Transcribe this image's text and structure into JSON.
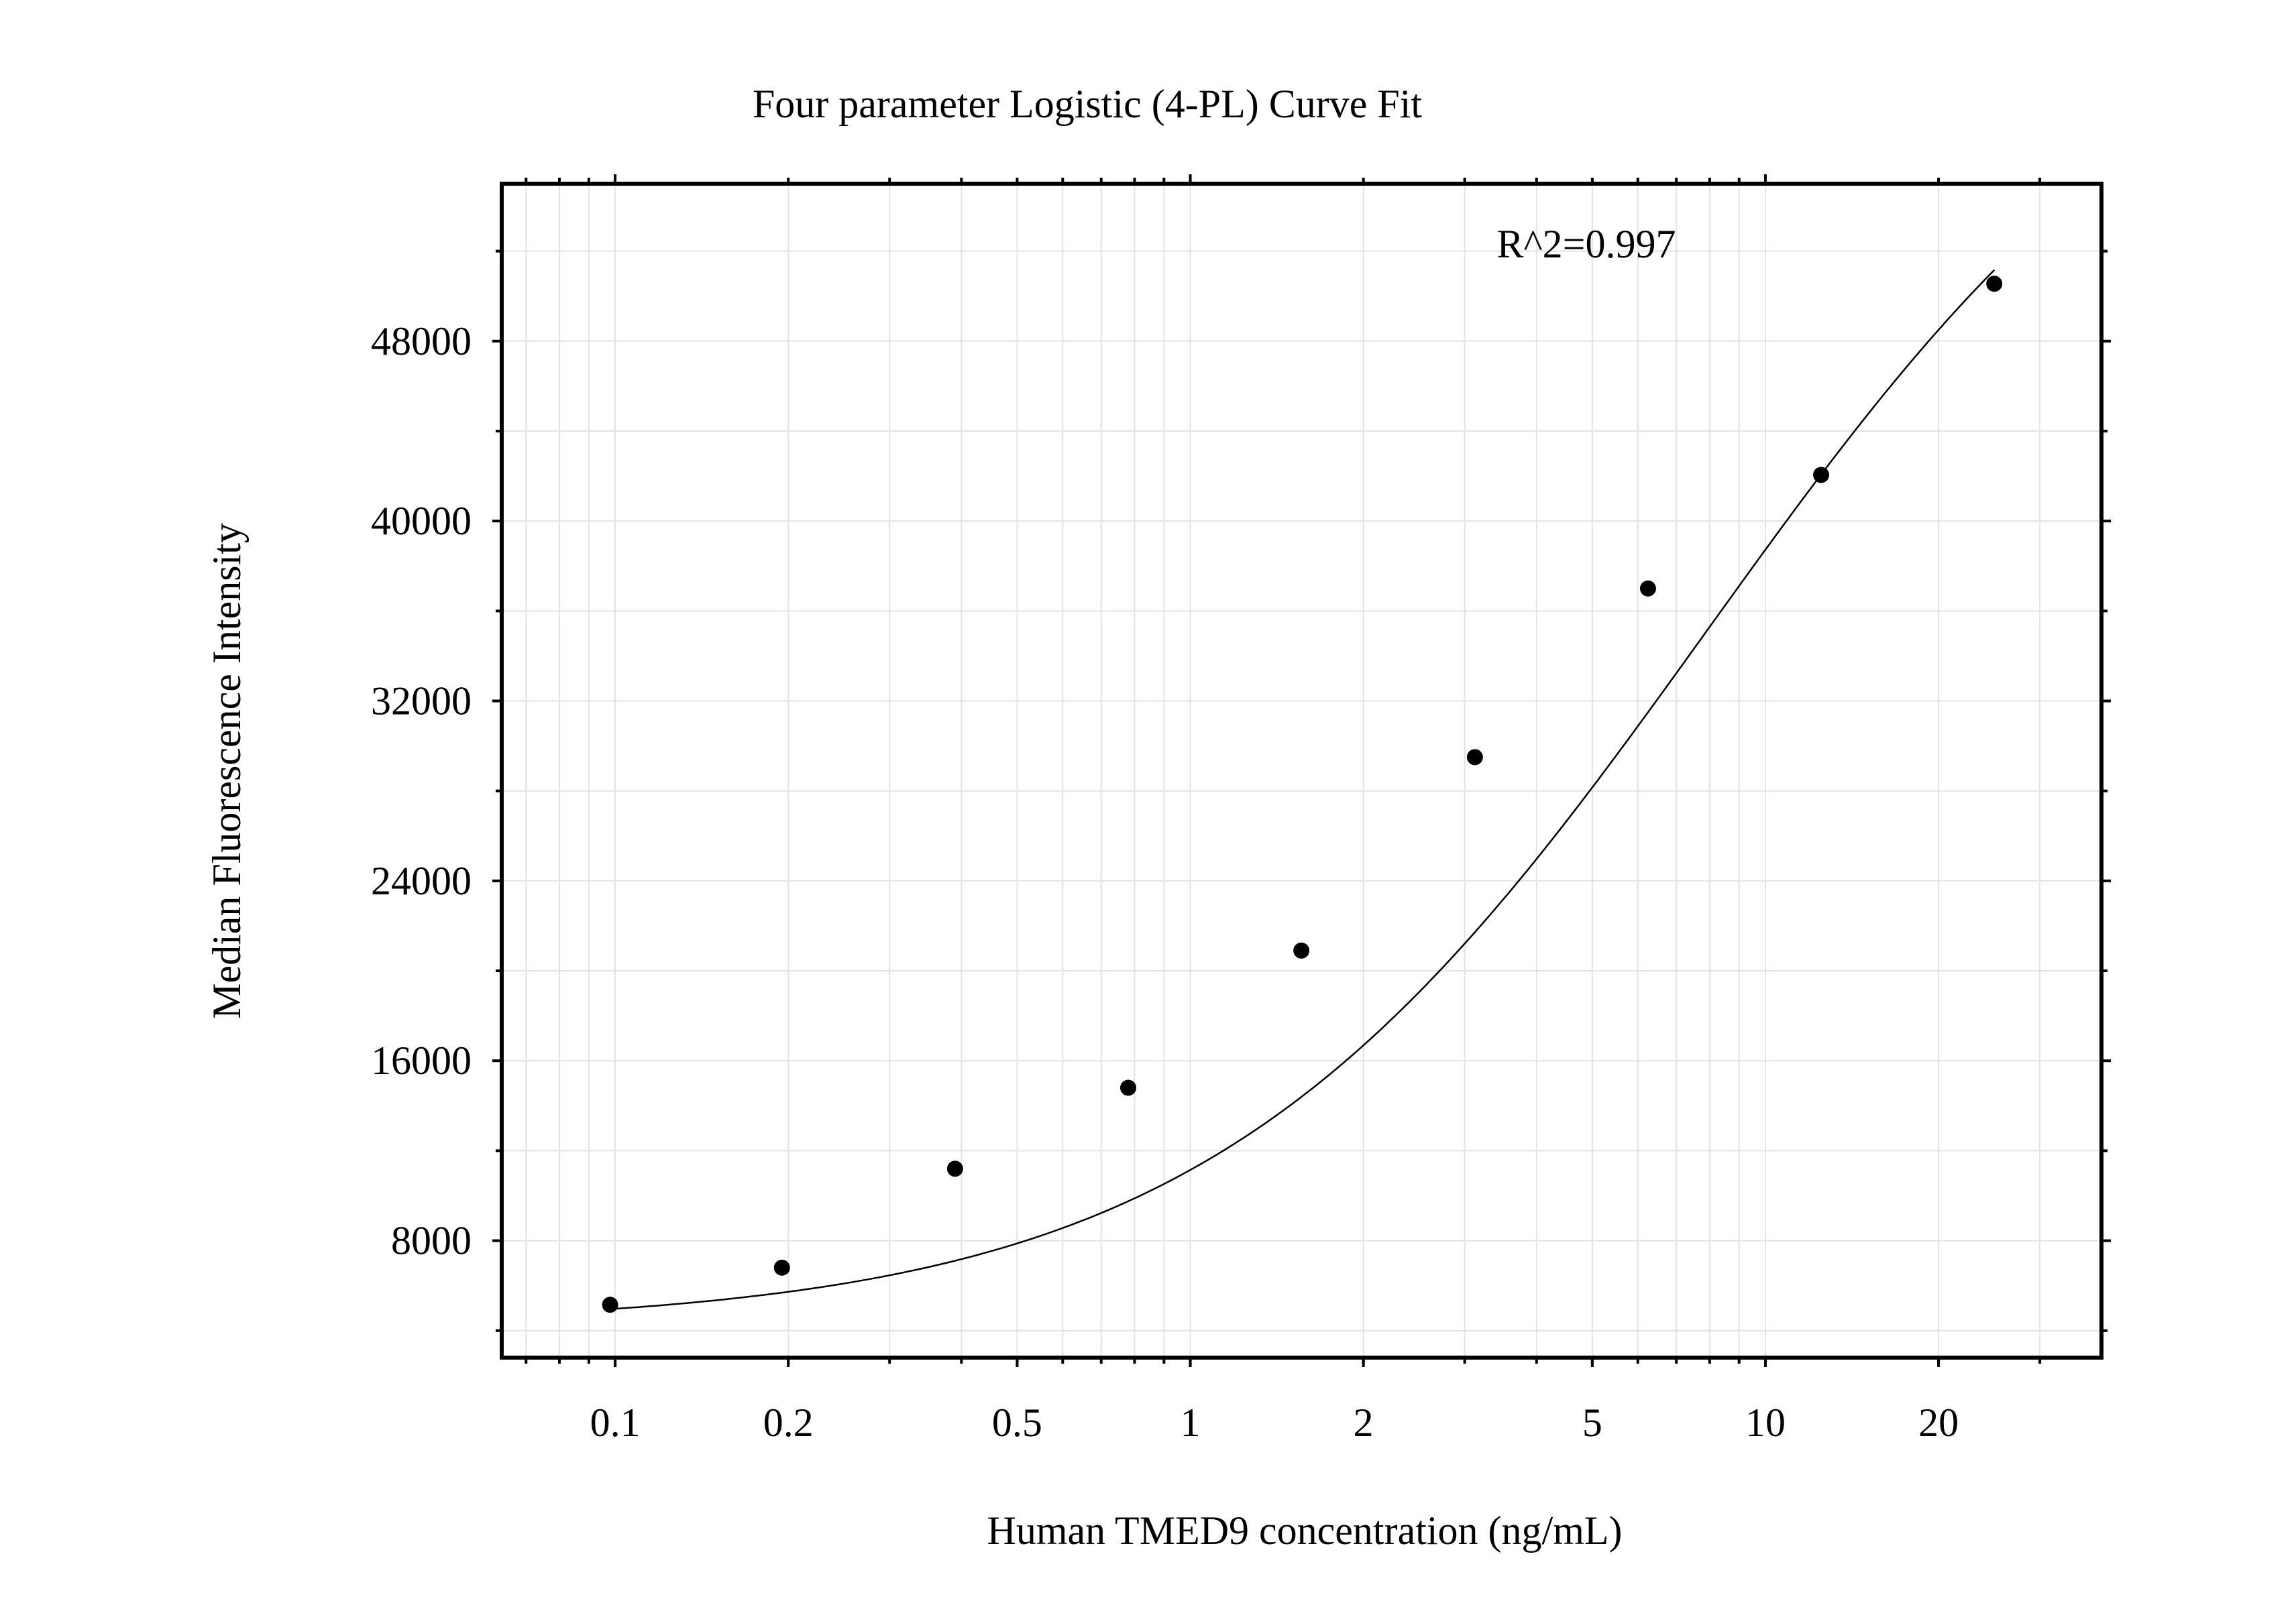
{
  "chart_data": {
    "type": "scatter",
    "title": "Four parameter Logistic (4-PL) Curve Fit",
    "xlabel": "Human TMED9 concentration (ng/mL)",
    "ylabel": "Median Fluorescence Intensity",
    "x_scale": "log",
    "xlim": [
      0.0635,
      38.4
    ],
    "ylim": [
      2800,
      55000
    ],
    "x_ticks": [
      0.1,
      0.2,
      0.5,
      1,
      2,
      5,
      10,
      20
    ],
    "x_tick_labels": [
      "0.1",
      "0.2",
      "0.5",
      "1",
      "2",
      "5",
      "10",
      "20"
    ],
    "y_ticks": [
      8000,
      16000,
      24000,
      32000,
      40000,
      48000
    ],
    "y_tick_labels": [
      "8000",
      "16000",
      "24000",
      "32000",
      "40000",
      "48000"
    ],
    "grid": true,
    "annotation": "R^2=0.997",
    "points": {
      "x": [
        0.098,
        0.195,
        0.39,
        0.78,
        1.56,
        3.125,
        6.25,
        12.5,
        25
      ],
      "y": [
        5150,
        6800,
        11200,
        14800,
        20900,
        29500,
        37000,
        42050,
        50550
      ]
    },
    "fit": {
      "model": "4PL",
      "bottom": 4200,
      "top": 66000,
      "ec50": 7.9,
      "hill": 1.0,
      "x_range": [
        0.1,
        25
      ]
    },
    "colors": {
      "points": "#000000",
      "curve": "#000000",
      "grid": "#e3e3e3",
      "axes": "#000000"
    }
  }
}
